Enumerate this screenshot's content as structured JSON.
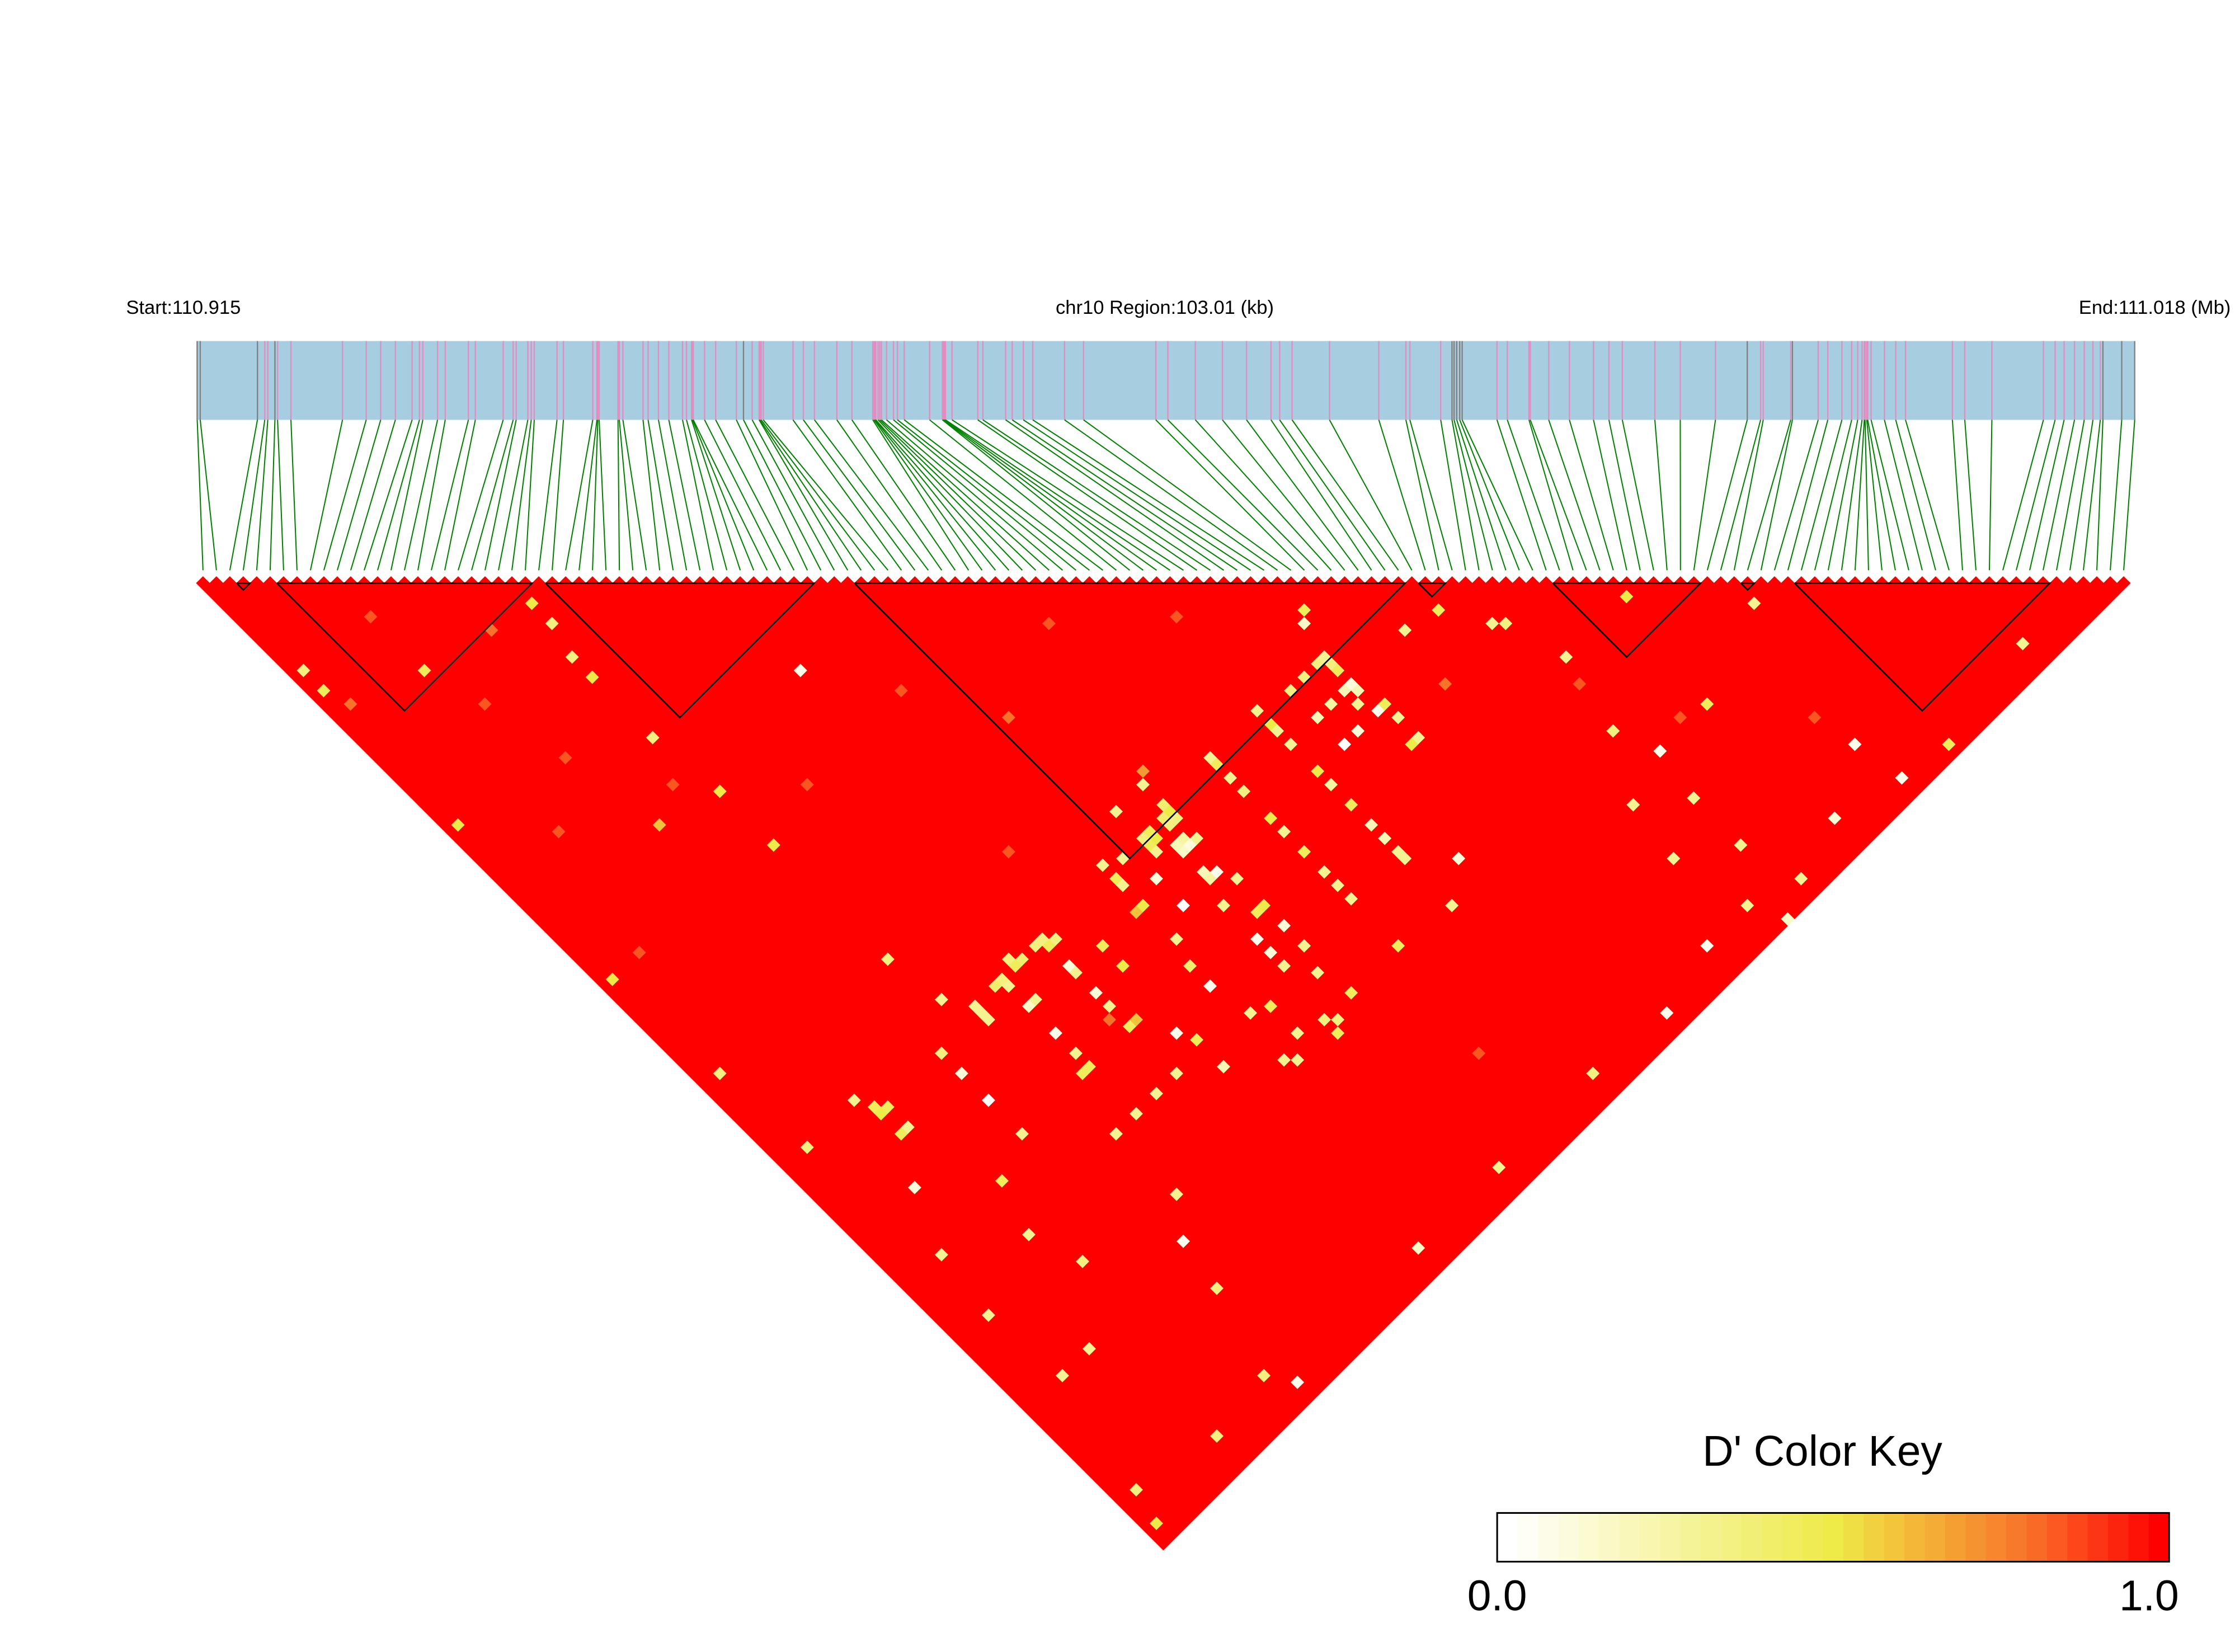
{
  "header": {
    "start_label": "Start:110.915",
    "region_label": "chr10 Region:103.01 (kb)",
    "end_label": "End:111.018 (Mb)"
  },
  "legend": {
    "title": "D' Color Key",
    "min_label": "0.0",
    "max_label": "1.0"
  },
  "colors": {
    "gene_bar": "#a6cde0",
    "snp_mark": "#e38cc0",
    "snp_mark_gray": "#808080",
    "connector": "#008000",
    "block_outline": "#000000"
  },
  "chart_data": {
    "type": "heatmap",
    "title": "D' Color Key",
    "region": {
      "chromosome": "chr10",
      "start_mb": 110.915,
      "end_mb": 111.018,
      "length_kb": 103.01
    },
    "value_range": [
      0,
      1
    ],
    "color_scale": [
      [
        0,
        "#ffffff"
      ],
      [
        0.5,
        "#eeea48"
      ],
      [
        0.6,
        "#f2c23a"
      ],
      [
        0.8,
        "#f8722a"
      ],
      [
        1,
        "#ff0000"
      ]
    ],
    "snp_positions_mb": [
      110.91505,
      110.91521,
      110.91825,
      110.91864,
      110.9188,
      110.91918,
      110.91932,
      110.92003,
      110.92277,
      110.92403,
      110.9248,
      110.92558,
      110.92647,
      110.92686,
      110.92704,
      110.92782,
      110.92823,
      110.92946,
      110.92983,
      110.93131,
      110.93184,
      110.932,
      110.93262,
      110.9328,
      110.93296,
      110.93417,
      110.93451,
      110.93607,
      110.93629,
      110.93634,
      110.93641,
      110.93741,
      110.93748,
      110.93767,
      110.93874,
      110.93901,
      110.93956,
      110.94011,
      110.94084,
      110.94105,
      110.94132,
      110.94137,
      110.94141,
      110.94201,
      110.9426,
      110.9437,
      110.94408,
      110.94454,
      110.94491,
      110.94495,
      110.94502,
      110.94513,
      110.94671,
      110.94726,
      110.94785,
      110.94904,
      110.94984,
      110.95095,
      110.95102,
      110.95107,
      110.95111,
      110.95123,
      110.95132,
      110.95141,
      110.95168,
      110.95205,
      110.95226,
      110.95262,
      110.95397,
      110.95465,
      110.9547,
      110.95475,
      110.95481,
      110.95516,
      110.95653,
      110.9568,
      110.95801,
      110.95836,
      110.95895,
      110.95945,
      110.96114,
      110.96215,
      110.96599,
      110.96663,
      110.96809,
      110.96953,
      110.97081,
      110.97211,
      110.97257,
      110.97323,
      110.97522,
      110.97784,
      110.97928,
      110.97949,
      110.98113,
      110.98173,
      110.98184,
      110.98198,
      110.98214,
      110.98227,
      110.98412,
      110.98467,
      110.98582,
      110.98589,
      110.98687,
      110.98797,
      110.98925,
      110.99007,
      110.99078,
      110.99251,
      110.99386,
      110.99573,
      110.99742,
      110.99813,
      110.99827,
      110.99973,
      110.99982,
      111.00119,
      111.0017,
      111.00245,
      111.00297,
      111.00329,
      111.00352,
      111.00364,
      111.00368,
      111.00377,
      111.00382,
      111.004,
      111.00471,
      111.00531,
      111.00583,
      111.00832,
      111.00898,
      111.01042,
      111.01316,
      111.01378,
      111.01426,
      111.01481,
      111.01533,
      111.01579,
      111.01618,
      111.01632,
      111.01732,
      111.01801
    ],
    "gray_snp_positions_mb": [
      110.91505,
      110.91521,
      110.91825,
      110.91918,
      110.94408,
      110.98173,
      110.98184,
      110.98198,
      110.98214,
      110.98227,
      110.99742,
      110.99982,
      111.01632,
      111.01732,
      111.01801
    ],
    "ld_blocks": [
      [
        3,
        3
      ],
      [
        6,
        24
      ],
      [
        26,
        45
      ],
      [
        49,
        89
      ],
      [
        91,
        92
      ],
      [
        101,
        111
      ],
      [
        115,
        115
      ],
      [
        119,
        137
      ]
    ],
    "default_dprime": 1.0,
    "dprime_cells": [
      [
        80,
        84,
        0.45
      ],
      [
        79,
        85,
        0.15
      ],
      [
        86,
        93,
        0.3
      ],
      [
        78,
        89,
        0.3
      ],
      [
        77,
        89,
        0.35
      ],
      [
        78,
        90,
        0.35
      ],
      [
        78,
        93,
        0.1
      ],
      [
        77,
        93,
        0.2
      ],
      [
        78,
        94,
        0.2
      ],
      [
        78,
        97,
        0.05
      ],
      [
        79,
        97,
        0.45
      ],
      [
        75,
        89,
        0.35
      ],
      [
        73,
        89,
        0.35
      ],
      [
        75,
        93,
        0.25
      ],
      [
        73,
        93,
        0.2
      ],
      [
        79,
        99,
        0.3
      ],
      [
        78,
        102,
        0.5
      ],
      [
        79,
        102,
        0.3
      ],
      [
        73,
        97,
        0.0
      ],
      [
        75,
        97,
        0.1
      ],
      [
        69,
        90,
        0.5
      ],
      [
        69,
        91,
        0.3
      ],
      [
        69,
        88,
        0.3
      ],
      [
        69,
        93,
        0.3
      ],
      [
        69,
        97,
        0.5
      ],
      [
        69,
        99,
        0.25
      ],
      [
        69,
        102,
        0.45
      ],
      [
        69,
        105,
        0.2
      ],
      [
        69,
        107,
        0.2
      ],
      [
        69,
        109,
        0.3
      ],
      [
        62,
        88,
        0.3
      ],
      [
        62,
        89,
        0.45
      ],
      [
        62,
        91,
        0.3
      ],
      [
        62,
        93,
        0.35
      ],
      [
        62,
        97,
        0.5
      ],
      [
        62,
        99,
        0.3
      ],
      [
        62,
        102,
        0.45
      ],
      [
        62,
        105,
        0.3
      ],
      [
        62,
        107,
        0.3
      ],
      [
        62,
        109,
        0.3
      ],
      [
        55,
        88,
        0.4
      ],
      [
        55,
        89,
        0.5
      ],
      [
        54,
        89,
        0.4
      ],
      [
        55,
        90,
        0.35
      ],
      [
        54,
        90,
        0.35
      ],
      [
        55,
        85,
        0.3
      ],
      [
        56,
        84,
        0.7
      ],
      [
        51,
        85,
        0.3
      ],
      [
        48,
        89,
        0.3
      ],
      [
        46,
        88,
        0.3
      ],
      [
        46,
        90,
        0.45
      ],
      [
        46,
        91,
        0.3
      ],
      [
        52,
        89,
        0.45
      ],
      [
        51,
        90,
        0.45
      ],
      [
        52,
        90,
        0.5
      ],
      [
        51,
        89,
        0.35
      ],
      [
        51,
        91,
        0.3
      ],
      [
        54,
        93,
        0.1
      ],
      [
        53,
        93,
        0.15
      ],
      [
        53,
        92,
        0.2
      ],
      [
        54,
        92,
        0.25
      ],
      [
        55,
        93,
        0.3
      ],
      [
        54,
        97,
        0.05
      ],
      [
        53,
        96,
        0.2
      ],
      [
        53,
        97,
        0.25
      ],
      [
        55,
        99,
        0.3
      ],
      [
        55,
        103,
        0.5
      ],
      [
        54,
        103,
        0.45
      ],
      [
        52,
        100,
        0.3
      ],
      [
        49,
        97,
        0.0
      ],
      [
        49,
        93,
        0.1
      ],
      [
        46,
        94,
        0.5
      ],
      [
        45,
        94,
        0.6
      ],
      [
        36,
        90,
        0.45
      ],
      [
        36,
        89,
        0.35
      ],
      [
        37,
        90,
        0.35
      ],
      [
        35,
        89,
        0.35
      ],
      [
        32,
        89,
        0.45
      ],
      [
        33,
        89,
        0.4
      ],
      [
        32,
        88,
        0.35
      ],
      [
        36,
        93,
        0.1
      ],
      [
        36,
        94,
        0.3
      ],
      [
        40,
        94,
        0.45
      ],
      [
        40,
        97,
        0.5
      ],
      [
        26,
        89,
        0.3
      ],
      [
        26,
        90,
        0.3
      ],
      [
        26,
        91,
        0.3
      ],
      [
        30,
        89,
        0.35
      ],
      [
        30,
        90,
        0.3
      ],
      [
        29,
        89,
        0.4
      ],
      [
        30,
        93,
        0.15
      ],
      [
        31,
        93,
        0.3
      ],
      [
        30,
        97,
        0.05
      ],
      [
        36,
        97,
        0.1
      ],
      [
        36,
        99,
        0.3
      ],
      [
        36,
        102,
        0.45
      ],
      [
        37,
        102,
        0.6
      ],
      [
        30,
        100,
        0.3
      ],
      [
        30,
        102,
        0.45
      ],
      [
        29,
        102,
        0.45
      ],
      [
        20,
        90,
        0.35
      ],
      [
        20,
        93,
        0.1
      ],
      [
        11,
        89,
        0.45
      ],
      [
        11,
        90,
        0.5
      ],
      [
        12,
        90,
        0.45
      ],
      [
        12,
        93,
        0.3
      ],
      [
        11,
        93,
        0.45
      ],
      [
        20,
        102,
        0.3
      ],
      [
        20,
        97,
        0.0
      ],
      [
        27,
        109,
        0.3
      ],
      [
        30,
        109,
        0.3
      ],
      [
        33,
        109,
        0.3
      ],
      [
        36,
        109,
        0.3
      ],
      [
        40,
        112,
        0.2
      ],
      [
        40,
        108,
        0.45
      ],
      [
        39,
        106,
        0.05
      ],
      [
        46,
        110,
        0.3
      ],
      [
        48,
        111,
        0.45
      ],
      [
        45,
        116,
        0.3
      ],
      [
        48,
        115,
        0.3
      ],
      [
        51,
        116,
        0.35
      ],
      [
        52,
        117,
        0.35
      ],
      [
        55,
        116,
        0.45
      ],
      [
        62,
        116,
        0.45
      ],
      [
        54,
        112,
        0.3
      ],
      [
        52,
        109,
        0.3
      ],
      [
        55,
        109,
        0.3
      ],
      [
        45,
        105,
        0.05
      ],
      [
        45,
        102,
        0.4
      ],
      [
        46,
        99,
        0.3
      ],
      [
        52,
        105,
        0.05
      ],
      [
        52,
        107,
        0.1
      ],
      [
        55,
        106,
        0.1
      ],
      [
        90,
        94,
        0.45
      ],
      [
        93,
        99,
        0.3
      ],
      [
        94,
        100,
        0.35
      ],
      [
        78,
        91,
        0.45
      ],
      [
        77,
        95,
        0.3
      ],
      [
        105,
        107,
        0.5
      ],
      [
        114,
        117,
        0.3
      ],
      [
        96,
        107,
        0.3
      ],
      [
        94,
        116,
        0.35
      ],
      [
        103,
        121,
        0.45
      ],
      [
        96,
        121,
        0.05
      ],
      [
        95,
        127,
        0.3
      ],
      [
        95,
        134,
        0.3
      ],
      [
        97,
        141,
        0.3
      ],
      [
        111,
        135,
        0.05
      ],
      [
        112,
        141,
        0.05
      ],
      [
        131,
        140,
        0.3
      ],
      [
        118,
        142,
        0.45
      ],
      [
        104,
        139,
        0.1
      ],
      [
        93,
        143,
        0.15
      ],
      [
        85,
        139,
        0.05
      ],
      [
        91,
        139,
        0.3
      ],
      [
        77,
        141,
        0.05
      ],
      [
        67,
        140,
        0.35
      ],
      [
        53,
        140,
        0.3
      ],
      [
        41,
        140,
        0.15
      ],
      [
        90,
        123,
        0.3
      ],
      [
        89,
        130,
        0.3
      ],
      [
        73,
        114,
        0.1
      ],
      [
        69,
        110,
        0.3
      ],
      [
        69,
        117,
        0.3
      ],
      [
        46,
        117,
        0.3
      ],
      [
        51,
        118,
        0.45
      ],
      [
        1,
        14,
        0.35
      ],
      [
        1,
        17,
        0.45
      ],
      [
        10,
        23,
        0.45
      ],
      [
        23,
        26,
        0.5
      ],
      [
        23,
        29,
        0.35
      ],
      [
        22,
        33,
        0.35
      ],
      [
        22,
        36,
        0.5
      ],
      [
        22,
        45,
        0.35
      ],
      [
        16,
        52,
        0.6
      ],
      [
        23,
        54,
        0.5
      ],
      [
        38,
        51,
        0.05
      ],
      [
        23,
        62,
        0.5
      ],
      [
        1,
        37,
        0.5
      ],
      [
        1,
        60,
        0.5
      ],
      [
        2,
        75,
        0.35
      ],
      [
        23,
        79,
        0.35
      ],
      [
        24,
        86,
        0.3
      ],
      [
        10,
        87,
        0.3
      ],
      [
        3,
        87,
        0.35
      ],
      [
        8,
        98,
        0.1
      ],
      [
        5,
        105,
        0.3
      ],
      [
        4,
        113,
        0.3
      ],
      [
        5,
        123,
        0.3
      ],
      [
        2,
        137,
        0.35
      ],
      [
        1,
        141,
        0.5
      ],
      [
        12,
        139,
        0.35
      ],
      [
        20,
        138,
        0.35
      ],
      [
        22,
        141,
        0.05
      ],
      [
        9,
        123,
        0.3
      ],
      [
        13,
        110,
        0.3
      ],
      [
        15,
        116,
        0.35
      ],
      [
        15,
        104,
        0.45
      ],
      [
        24,
        122,
        0.05
      ],
      [
        23,
        128,
        0.35
      ],
      [
        27,
        118,
        0.3
      ],
      [
        60,
        66,
        0.85
      ],
      [
        12,
        30,
        0.85
      ],
      [
        14,
        40,
        0.85
      ],
      [
        30,
        60,
        0.85
      ],
      [
        40,
        80,
        0.85
      ],
      [
        50,
        70,
        0.8
      ],
      [
        100,
        120,
        0.85
      ],
      [
        20,
        50,
        0.85
      ],
      [
        18,
        25,
        0.8
      ],
      [
        70,
        75,
        0.85
      ],
      [
        85,
        100,
        0.8
      ],
      [
        110,
        130,
        0.85
      ],
      [
        5,
        60,
        0.85
      ],
      [
        8,
        45,
        0.85
      ],
      [
        35,
        100,
        0.8
      ],
      [
        60,
        130,
        0.85
      ],
      [
        2,
        20,
        0.8
      ],
      [
        10,
        15,
        0.85
      ],
      [
        44,
        60,
        0.85
      ],
      [
        95,
        110,
        0.85
      ]
    ]
  }
}
